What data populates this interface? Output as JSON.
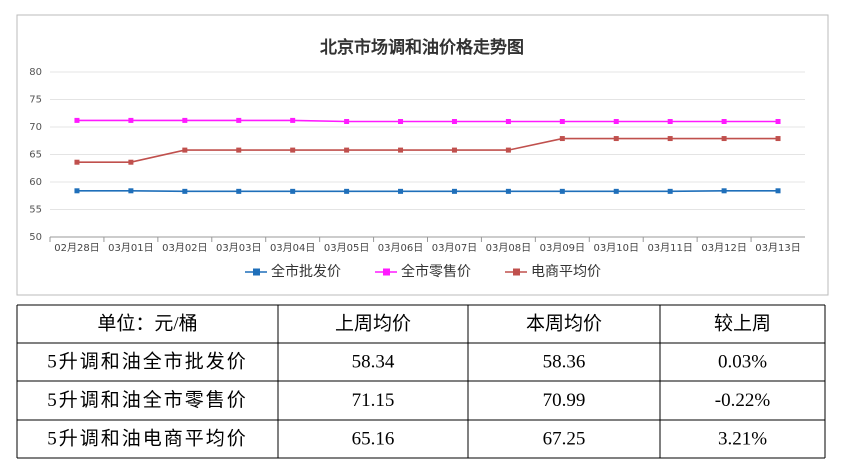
{
  "chart_data": {
    "type": "line",
    "title": "北京市场调和油价格走势图",
    "categories": [
      "02月28日",
      "03月01日",
      "03月02日",
      "03月03日",
      "03月04日",
      "03月05日",
      "03月06日",
      "03月07日",
      "03月08日",
      "03月09日",
      "03月10日",
      "03月11日",
      "03月12日",
      "03月13日"
    ],
    "series": [
      {
        "name": "全市批发价",
        "color": "#1f6fba",
        "values": [
          58.4,
          58.4,
          58.3,
          58.3,
          58.3,
          58.3,
          58.3,
          58.3,
          58.3,
          58.3,
          58.3,
          58.3,
          58.4,
          58.4
        ]
      },
      {
        "name": "全市零售价",
        "color": "#ff1aff",
        "values": [
          71.2,
          71.2,
          71.2,
          71.2,
          71.2,
          71.0,
          71.0,
          71.0,
          71.0,
          71.0,
          71.0,
          71.0,
          71.0,
          71.0
        ]
      },
      {
        "name": "电商平均价",
        "color": "#c0504d",
        "values": [
          63.6,
          63.6,
          65.8,
          65.8,
          65.8,
          65.8,
          65.8,
          65.8,
          65.8,
          67.9,
          67.9,
          67.9,
          67.9,
          67.9
        ]
      }
    ],
    "ylim": [
      50,
      80
    ],
    "yticks": [
      50,
      55,
      60,
      65,
      70,
      75,
      80
    ],
    "grid": true,
    "legend": "bottom"
  },
  "table": {
    "header": [
      "单位：元/桶",
      "上周均价",
      "本周均价",
      "较上周"
    ],
    "rows": [
      [
        "5升调和油全市批发价",
        "58.34",
        "58.36",
        "0.03%"
      ],
      [
        "5升调和油全市零售价",
        "71.15",
        "70.99",
        "-0.22%"
      ],
      [
        "5升调和油电商平均价",
        "65.16",
        "67.25",
        "3.21%"
      ]
    ]
  }
}
